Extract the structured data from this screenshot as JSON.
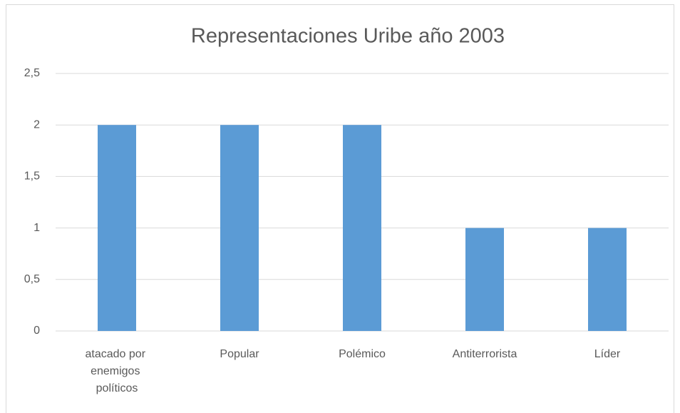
{
  "chart_data": {
    "type": "bar",
    "title": "Representaciones Uribe año 2003",
    "categories": [
      "atacado por enemigos políticos",
      "Popular",
      "Polémico",
      "Antiterrorista",
      "Líder"
    ],
    "values": [
      2,
      2,
      2,
      1,
      1
    ],
    "color": "#5b9bd5",
    "ylim": [
      0,
      2.5
    ],
    "yticks": [
      0,
      {
        "value": 0.5,
        "label": "0,5"
      },
      1,
      {
        "value": 1.5,
        "label": "1,5"
      },
      2,
      {
        "value": 2.5,
        "label": "2,5"
      }
    ],
    "grid": true
  }
}
